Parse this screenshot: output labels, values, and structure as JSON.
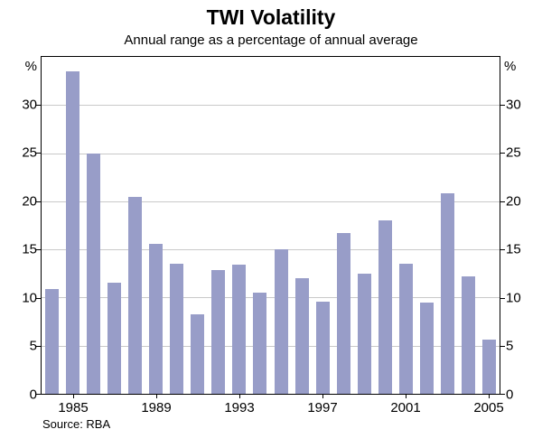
{
  "page": {
    "title": "TWI Volatility",
    "subtitle": "Annual range as a percentage of annual average",
    "source": "Source: RBA"
  },
  "chart_data": {
    "type": "bar",
    "title": "TWI Volatility",
    "subtitle": "Annual range as a percentage of annual average",
    "unit": "%",
    "categories": [
      "1984",
      "1985",
      "1986",
      "1987",
      "1988",
      "1989",
      "1990",
      "1991",
      "1992",
      "1993",
      "1994",
      "1995",
      "1996",
      "1997",
      "1998",
      "1999",
      "2000",
      "2001",
      "2002",
      "2003",
      "2004",
      "2005"
    ],
    "values": [
      10.9,
      33.5,
      25.0,
      11.5,
      20.5,
      15.6,
      13.5,
      8.3,
      12.9,
      13.4,
      10.5,
      15.0,
      12.0,
      9.6,
      16.7,
      12.5,
      18.0,
      13.5,
      9.5,
      20.8,
      12.2,
      5.6
    ],
    "ylim": [
      0,
      35
    ],
    "y_ticks": [
      0,
      5,
      10,
      15,
      20,
      25,
      30
    ],
    "x_tick_labels": [
      "1985",
      "1989",
      "1993",
      "1997",
      "2001",
      "2005"
    ],
    "grid": true,
    "legend": "none",
    "bar_color": "#989dc8",
    "grid_color": "#c9c9c9",
    "axis_color": "#000000",
    "source": "Source: RBA"
  }
}
